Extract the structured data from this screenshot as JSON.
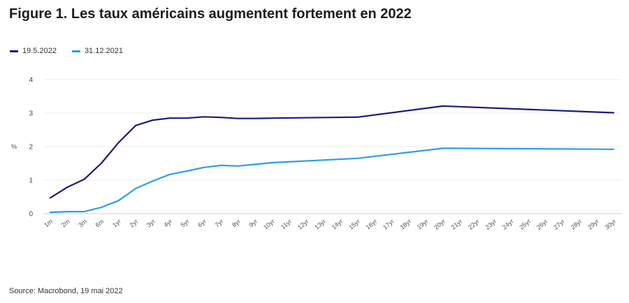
{
  "header": {
    "title": "Figure 1. Les taux américains augmentent fortement en 2022"
  },
  "footer": {
    "source": "Source: Macrobond, 19 mai 2022"
  },
  "chart_data": {
    "type": "line",
    "title": "Figure 1. Les taux américains augmentent fortement en 2022",
    "xlabel": "",
    "ylabel": "%",
    "ylim": [
      0,
      4
    ],
    "yticks": [
      0,
      1,
      2,
      3,
      4
    ],
    "grid": true,
    "legend_position": "top-left",
    "categories": [
      "1m",
      "2m",
      "3m",
      "6m",
      "1yr",
      "2yr",
      "3yr",
      "4yr",
      "5yr",
      "6yr",
      "7yr",
      "8yr",
      "9yr",
      "10yr",
      "11yr",
      "12yr",
      "13yr",
      "14yr",
      "15yr",
      "16yr",
      "17yr",
      "18yr",
      "19yr",
      "20yr",
      "21yr",
      "22yr",
      "23yr",
      "24yr",
      "25yr",
      "26yr",
      "27yr",
      "28yr",
      "29yr",
      "30yr"
    ],
    "series": [
      {
        "name": "19.5.2022",
        "color": "#1b1b7a",
        "x": [
          "1m",
          "2m",
          "3m",
          "6m",
          "1yr",
          "2yr",
          "3yr",
          "4yr",
          "5yr",
          "6yr",
          "7yr",
          "8yr",
          "9yr",
          "10yr",
          "15yr",
          "20yr",
          "30yr"
        ],
        "values": [
          0.47,
          0.79,
          1.03,
          1.51,
          2.12,
          2.63,
          2.79,
          2.85,
          2.85,
          2.89,
          2.87,
          2.84,
          2.84,
          2.85,
          2.88,
          3.21,
          3.01
        ]
      },
      {
        "name": "31.12.2021",
        "color": "#2b9fe6",
        "x": [
          "1m",
          "2m",
          "3m",
          "6m",
          "1yr",
          "2yr",
          "3yr",
          "4yr",
          "5yr",
          "6yr",
          "7yr",
          "8yr",
          "9yr",
          "10yr",
          "15yr",
          "20yr",
          "30yr"
        ],
        "values": [
          0.04,
          0.06,
          0.06,
          0.19,
          0.39,
          0.75,
          0.97,
          1.17,
          1.27,
          1.38,
          1.44,
          1.42,
          1.47,
          1.52,
          1.65,
          1.95,
          1.92
        ]
      }
    ]
  }
}
